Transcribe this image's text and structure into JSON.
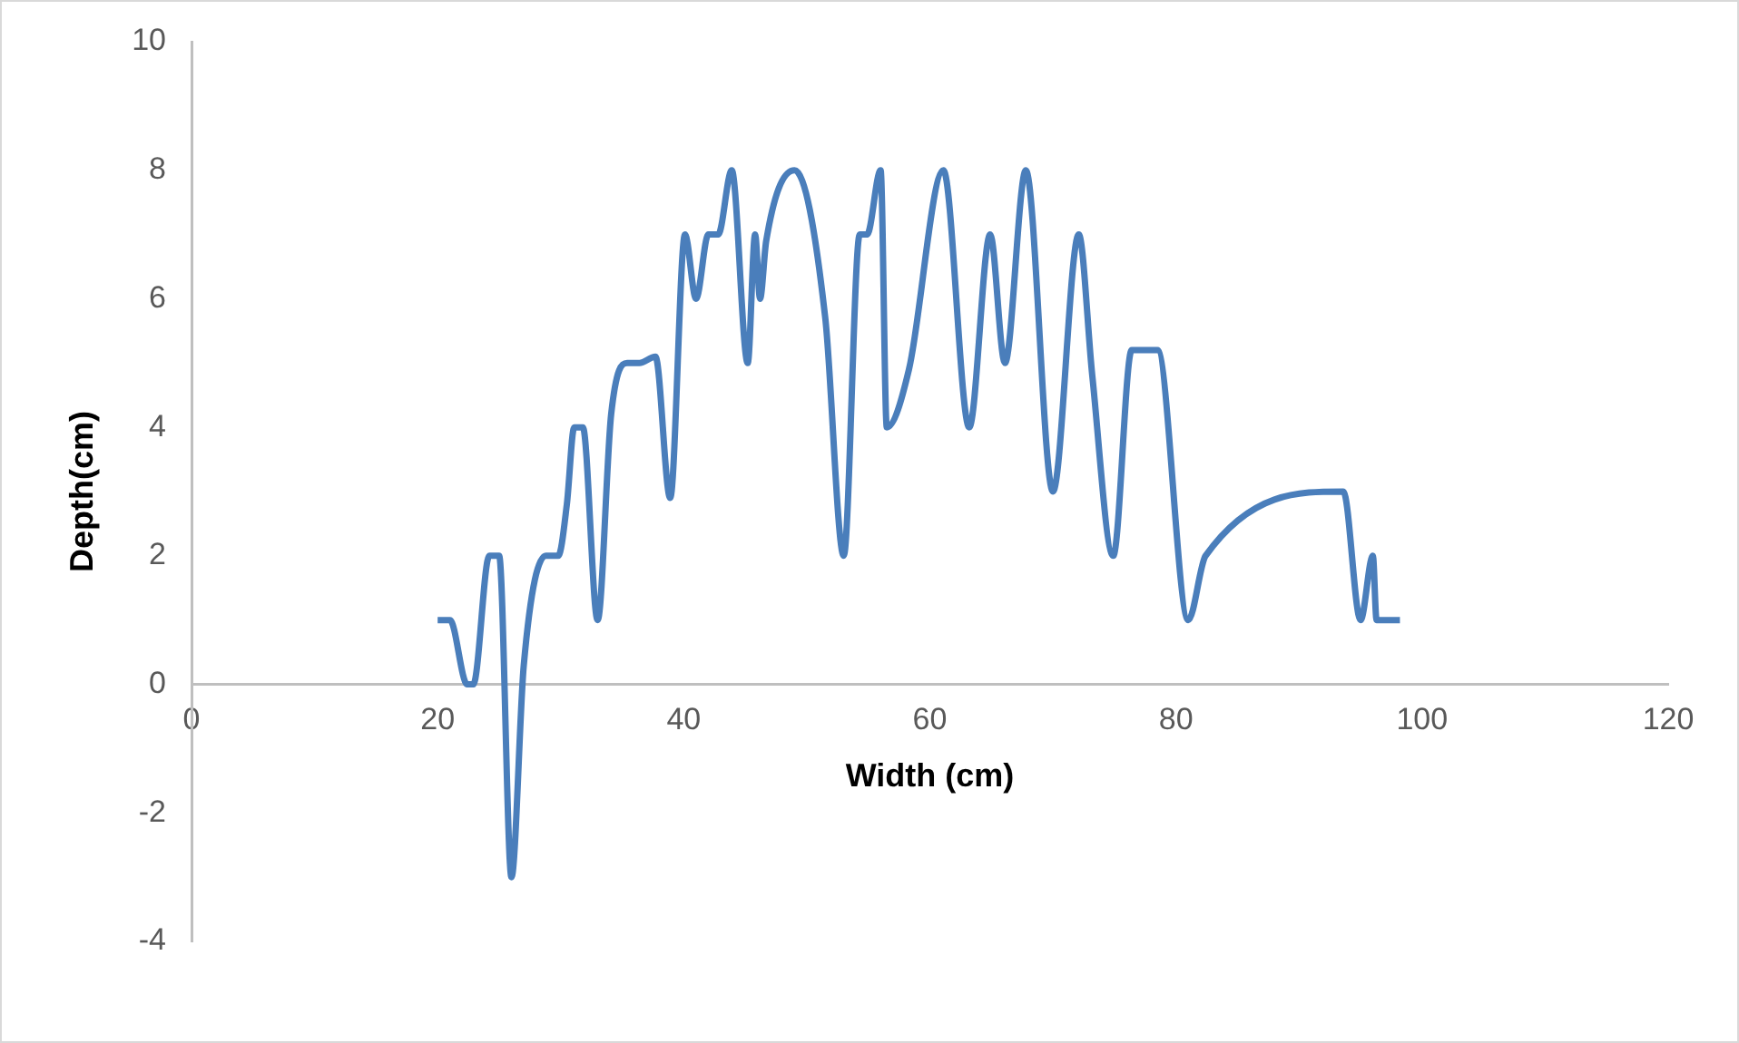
{
  "chart_data": {
    "type": "line",
    "xlabel": "Width (cm)",
    "ylabel": "Depth(cm)",
    "series": [
      {
        "color": "#4a7ebb",
        "x": [
          20,
          21,
          22.4,
          22.9,
          24.2,
          25,
          26,
          27,
          28.8,
          29.8,
          30.5,
          31.1,
          31.8,
          33,
          34.1,
          35.4,
          36.4,
          37.7,
          38.9,
          40.1,
          41,
          42,
          42.8,
          43.9,
          45.2,
          45.8,
          46.2,
          46.7,
          49,
          51.5,
          53,
          54.3,
          54.9,
          56,
          56.5,
          58.3,
          61.1,
          63.2,
          64.9,
          66.1,
          67.8,
          70,
          72.1,
          73.2,
          74.9,
          76.4,
          78.5,
          81,
          82.4,
          93.6,
          95,
          96,
          96.3,
          98.2
        ],
        "values": [
          1,
          1,
          0,
          0,
          2,
          2,
          -3,
          0.3,
          2,
          2,
          2.8,
          4,
          4,
          1,
          4.2,
          5,
          5,
          5.1,
          2.9,
          7,
          6,
          7,
          7,
          8,
          5,
          7,
          6,
          6.9,
          8,
          5.7,
          2,
          7,
          7,
          8,
          4,
          4.9,
          8,
          4,
          7,
          5,
          8,
          3,
          7,
          4.8,
          2,
          5.2,
          5.2,
          1,
          2,
          3,
          1,
          2,
          1,
          1
        ]
      }
    ],
    "xlim": [
      0,
      120
    ],
    "xticks": [
      0,
      20,
      40,
      60,
      80,
      100,
      120
    ],
    "ylim": [
      -4,
      10
    ],
    "yticks": [
      -4,
      -2,
      0,
      2,
      4,
      6,
      8,
      10
    ],
    "grid": false,
    "legend": false,
    "marker": "none",
    "line_style": "solid"
  }
}
